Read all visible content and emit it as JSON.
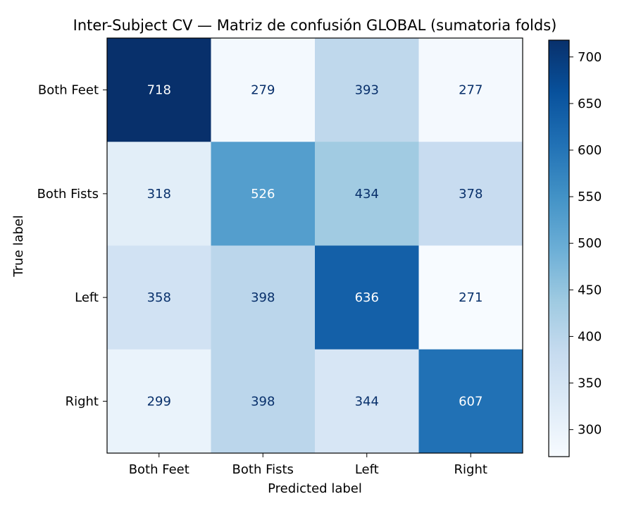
{
  "chart_data": {
    "type": "heatmap",
    "title": "Inter-Subject CV — Matriz de confusión GLOBAL (sumatoria folds)",
    "xlabel": "Predicted label",
    "ylabel": "True label",
    "x_categories": [
      "Both Feet",
      "Both Fists",
      "Left",
      "Right"
    ],
    "y_categories": [
      "Both Feet",
      "Both Fists",
      "Left",
      "Right"
    ],
    "values": [
      [
        718,
        279,
        393,
        277
      ],
      [
        318,
        526,
        434,
        378
      ],
      [
        358,
        398,
        636,
        271
      ],
      [
        299,
        398,
        344,
        607
      ]
    ],
    "colormap": "Blues",
    "colorbar": {
      "min": 271,
      "max": 718,
      "ticks": [
        300,
        350,
        400,
        450,
        500,
        550,
        600,
        650,
        700
      ]
    },
    "colors": {
      "text_dark": "#08306b",
      "text_light": "#ffffff"
    }
  }
}
